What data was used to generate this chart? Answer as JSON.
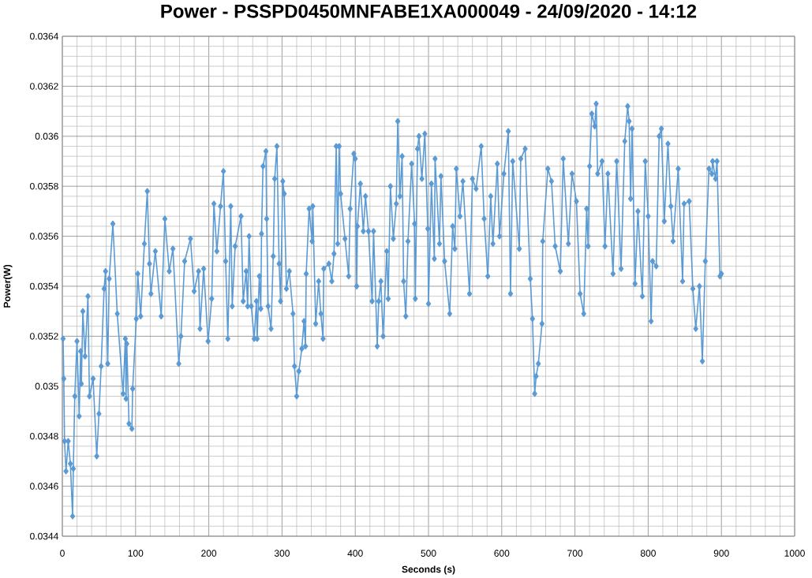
{
  "chart_data": {
    "type": "line",
    "title": "Power - PSSPD0450MNFABE1XA000049 - 24/09/2020 - 14:12",
    "xlabel": "Seconds (s)",
    "ylabel": "Power(W)",
    "color": "#5b9bd5",
    "marker": "diamond",
    "line_style": "solid",
    "grid": true,
    "xlim": [
      0,
      1000
    ],
    "ylim": [
      0.0344,
      0.0364
    ],
    "xticks": [
      0,
      100,
      200,
      300,
      400,
      500,
      600,
      700,
      800,
      900,
      1000
    ],
    "yticks": [
      0.0344,
      0.0346,
      0.0348,
      0.035,
      0.0352,
      0.0354,
      0.0356,
      0.0358,
      0.036,
      0.0362,
      0.0364
    ],
    "x": [
      1,
      2,
      3,
      5,
      8,
      11,
      14,
      15,
      17,
      20,
      23,
      25,
      26,
      28,
      31,
      35,
      37,
      42,
      47,
      50,
      53,
      57,
      59,
      62,
      64,
      69,
      75,
      83,
      86,
      87,
      88,
      91,
      95,
      96,
      101,
      103,
      107,
      112,
      116,
      119,
      121,
      127,
      135,
      140,
      146,
      151,
      159,
      162,
      167,
      175,
      180,
      186,
      188,
      193,
      199,
      204,
      207,
      211,
      216,
      220,
      223,
      226,
      230,
      232,
      236,
      244,
      247,
      251,
      253,
      255,
      258,
      262,
      265,
      266,
      269,
      271,
      272,
      274,
      278,
      279,
      281,
      285,
      288,
      290,
      293,
      296,
      298,
      301,
      303,
      306,
      310,
      315,
      317,
      320,
      323,
      327,
      330,
      332,
      333,
      337,
      341,
      342,
      346,
      350,
      353,
      356,
      357,
      364,
      368,
      371,
      374,
      376,
      378,
      380,
      386,
      391,
      393,
      398,
      400,
      402,
      403,
      407,
      411,
      414,
      418,
      423,
      425,
      430,
      432,
      435,
      438,
      443,
      445,
      448,
      452,
      456,
      458,
      461,
      464,
      466,
      469,
      472,
      477,
      481,
      482,
      485,
      487,
      491,
      495,
      499,
      500,
      504,
      508,
      509,
      515,
      517,
      522,
      529,
      533,
      536,
      538,
      543,
      547,
      556,
      560,
      565,
      572,
      576,
      581,
      585,
      588,
      594,
      597,
      603,
      609,
      612,
      615,
      624,
      626,
      632,
      639,
      642,
      645,
      647,
      650,
      655,
      656,
      663,
      668,
      673,
      680,
      684,
      691,
      696,
      702,
      707,
      712,
      716,
      718,
      720,
      723,
      727,
      729,
      731,
      737,
      741,
      745,
      752,
      757,
      763,
      768,
      772,
      774,
      776,
      778,
      782,
      786,
      792,
      796,
      800,
      804,
      806,
      811,
      815,
      818,
      822,
      827,
      831,
      834,
      841,
      847,
      849,
      856,
      861,
      865,
      870,
      874,
      878,
      883,
      887,
      888,
      892,
      894,
      898,
      900
    ],
    "values": [
      0.03519,
      0.03503,
      0.03478,
      0.03466,
      0.03478,
      0.03469,
      0.03448,
      0.03467,
      0.03496,
      0.03518,
      0.03488,
      0.03514,
      0.03501,
      0.0353,
      0.03512,
      0.03536,
      0.03496,
      0.03503,
      0.03472,
      0.03489,
      0.03508,
      0.03539,
      0.03546,
      0.03509,
      0.03543,
      0.03565,
      0.03529,
      0.03497,
      0.03519,
      0.03495,
      0.03517,
      0.03485,
      0.03483,
      0.03499,
      0.03527,
      0.03545,
      0.03528,
      0.03557,
      0.03578,
      0.03549,
      0.03537,
      0.03554,
      0.03528,
      0.03567,
      0.03546,
      0.03555,
      0.03509,
      0.0352,
      0.0355,
      0.03559,
      0.03538,
      0.03546,
      0.03523,
      0.03547,
      0.03518,
      0.03535,
      0.03573,
      0.03554,
      0.03572,
      0.03586,
      0.0355,
      0.03519,
      0.03572,
      0.03532,
      0.03556,
      0.03568,
      0.03534,
      0.03546,
      0.03532,
      0.0356,
      0.03532,
      0.03519,
      0.03534,
      0.03519,
      0.03544,
      0.03531,
      0.03561,
      0.03588,
      0.03594,
      0.03567,
      0.03532,
      0.03523,
      0.03552,
      0.03583,
      0.03596,
      0.03549,
      0.03534,
      0.03582,
      0.03577,
      0.03539,
      0.03546,
      0.03529,
      0.03508,
      0.03496,
      0.03506,
      0.03515,
      0.03526,
      0.03516,
      0.03545,
      0.03571,
      0.03558,
      0.03572,
      0.03525,
      0.03542,
      0.03529,
      0.03519,
      0.03547,
      0.03549,
      0.03542,
      0.03553,
      0.03596,
      0.03557,
      0.03596,
      0.03577,
      0.03559,
      0.03544,
      0.03571,
      0.03593,
      0.03591,
      0.0354,
      0.03564,
      0.03581,
      0.03562,
      0.03576,
      0.03562,
      0.03534,
      0.03562,
      0.03516,
      0.03534,
      0.03542,
      0.0352,
      0.03554,
      0.03535,
      0.0358,
      0.03559,
      0.03573,
      0.03606,
      0.03576,
      0.03592,
      0.03542,
      0.03528,
      0.03558,
      0.03589,
      0.03565,
      0.03535,
      0.03595,
      0.036,
      0.03583,
      0.03601,
      0.03563,
      0.03533,
      0.03581,
      0.03551,
      0.03591,
      0.03557,
      0.03584,
      0.0355,
      0.03529,
      0.03564,
      0.03555,
      0.03587,
      0.03568,
      0.03582,
      0.03537,
      0.03583,
      0.03579,
      0.03596,
      0.03567,
      0.03544,
      0.03576,
      0.03557,
      0.03589,
      0.0356,
      0.03585,
      0.03602,
      0.03537,
      0.0359,
      0.03555,
      0.03591,
      0.03595,
      0.03543,
      0.03527,
      0.03497,
      0.03504,
      0.03509,
      0.03525,
      0.03558,
      0.03587,
      0.03582,
      0.03556,
      0.03546,
      0.03591,
      0.03557,
      0.03585,
      0.03574,
      0.03537,
      0.03529,
      0.03571,
      0.03556,
      0.03588,
      0.03609,
      0.03604,
      0.03613,
      0.03585,
      0.0359,
      0.03556,
      0.03585,
      0.03545,
      0.0359,
      0.03547,
      0.03598,
      0.03612,
      0.03606,
      0.03575,
      0.03603,
      0.03541,
      0.0357,
      0.03536,
      0.0359,
      0.03568,
      0.03526,
      0.0355,
      0.03548,
      0.036,
      0.03603,
      0.03566,
      0.03597,
      0.03572,
      0.03558,
      0.03587,
      0.03542,
      0.03573,
      0.03574,
      0.03539,
      0.03523,
      0.0354,
      0.0351,
      0.0355,
      0.03587,
      0.03585,
      0.0359,
      0.03583,
      0.0359,
      0.03544,
      0.03545
    ]
  }
}
